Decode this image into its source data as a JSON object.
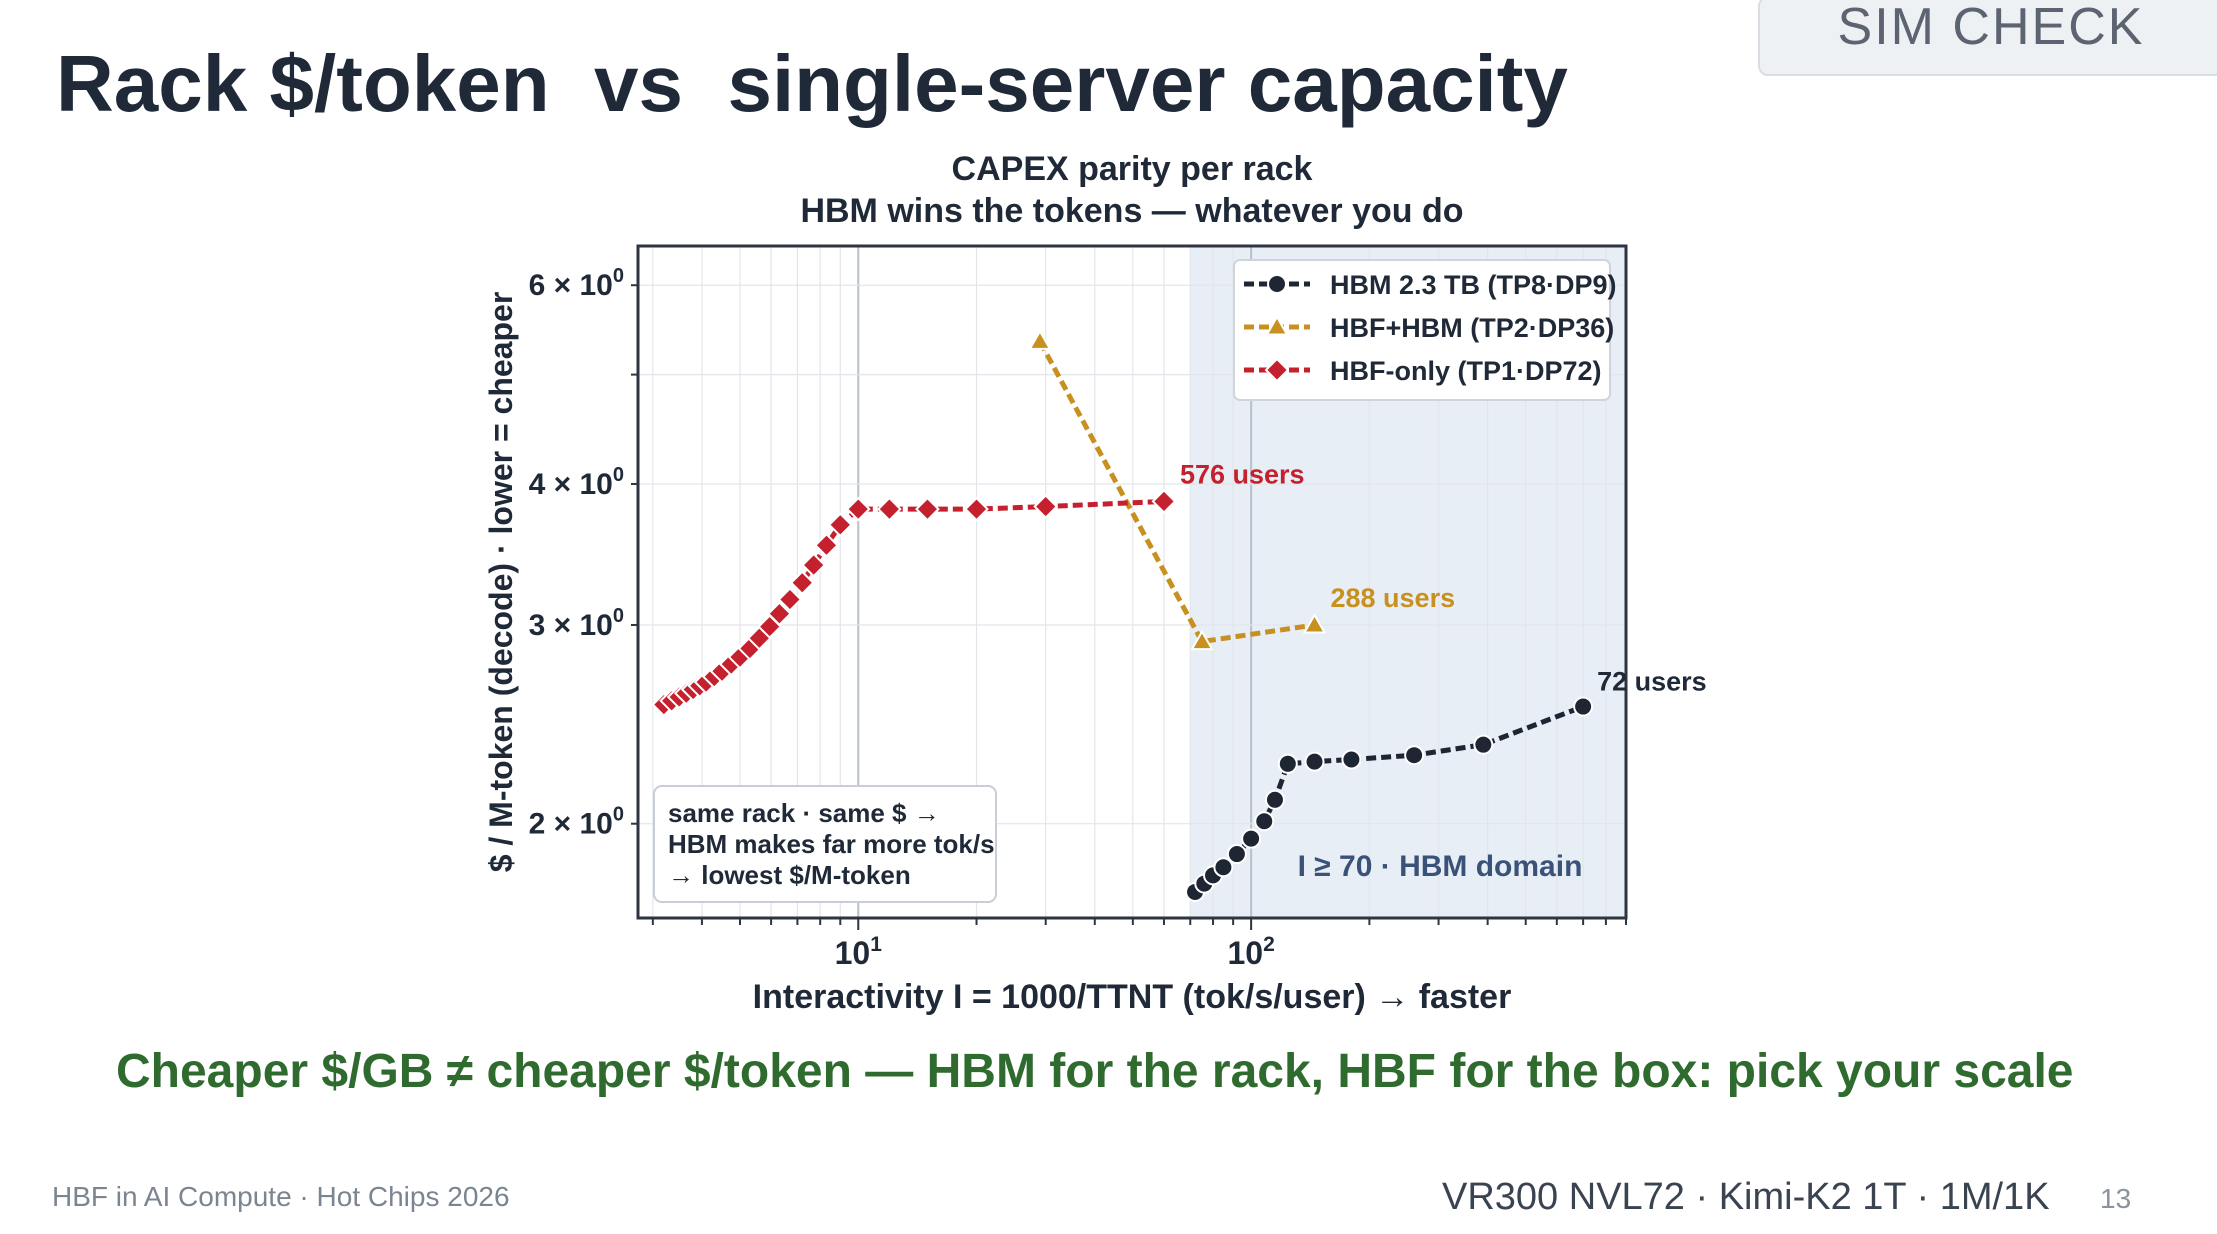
{
  "slide": {
    "title": "Rack $/token  vs  single-server capacity",
    "badge": "SIM CHECK",
    "takeaway": "Cheaper $/GB ≠ cheaper $/token — HBM for the rack, HBF for the box: pick your scale",
    "footer_left": "HBF in AI Compute · Hot Chips 2026",
    "footer_right": "VR300 NVL72 · Kimi-K2 1T · 1M/1K",
    "page_number": "13"
  },
  "chart_data": {
    "type": "line",
    "title_line1": "CAPEX parity per rack",
    "title_line2": "HBM wins the tokens — whatever you do",
    "xlabel": "Interactivity  I = 1000/TTNT  (tok/s/user)  → faster",
    "ylabel": "$ / M-token (decode)   ·   lower = cheaper",
    "x_scale": "log",
    "y_scale": "log",
    "xlim": [
      2.75,
      900
    ],
    "ylim": [
      1.65,
      6.5
    ],
    "x_ticks": [
      {
        "value": 10,
        "base": "10",
        "exp": "1"
      },
      {
        "value": 100,
        "base": "10",
        "exp": "2"
      }
    ],
    "y_ticks": [
      {
        "value": 2,
        "mant": "2 × 10",
        "exp": "0"
      },
      {
        "value": 3,
        "mant": "3 × 10",
        "exp": "0"
      },
      {
        "value": 4,
        "mant": "4 × 10",
        "exp": "0"
      },
      {
        "value": 6,
        "mant": "6 × 10",
        "exp": "0"
      }
    ],
    "grid": true,
    "legend_position": "top-right",
    "shaded_region": {
      "x_from": 70,
      "label": "I ≥ 70  ·  HBM domain",
      "color": "#e8eef6"
    },
    "series": [
      {
        "name": "HBM 2.3 TB (TP8·DP9)",
        "color": "#1e2533",
        "marker": "circle",
        "dash": "10,5",
        "end_label": "72 users",
        "points": [
          [
            72,
            1.74
          ],
          [
            76,
            1.77
          ],
          [
            80,
            1.8
          ],
          [
            85,
            1.83
          ],
          [
            92,
            1.88
          ],
          [
            100,
            1.94
          ],
          [
            108,
            2.01
          ],
          [
            115,
            2.1
          ],
          [
            124,
            2.26
          ],
          [
            145,
            2.27
          ],
          [
            180,
            2.28
          ],
          [
            260,
            2.3
          ],
          [
            390,
            2.35
          ],
          [
            700,
            2.54
          ]
        ]
      },
      {
        "name": "HBF+HBM (TP2·DP36)",
        "color": "#c8901f",
        "marker": "triangle",
        "dash": "10,5",
        "end_label": "288 users",
        "points": [
          [
            29,
            5.35
          ],
          [
            75,
            2.9
          ],
          [
            145,
            3.0
          ]
        ]
      },
      {
        "name": "HBF-only (TP1·DP72)",
        "color": "#c4202e",
        "marker": "diamond",
        "dash": "10,5",
        "end_label": "576 users",
        "points": [
          [
            3.2,
            2.55
          ],
          [
            3.35,
            2.57
          ],
          [
            3.5,
            2.59
          ],
          [
            3.65,
            2.61
          ],
          [
            3.8,
            2.63
          ],
          [
            3.95,
            2.65
          ],
          [
            4.1,
            2.67
          ],
          [
            4.3,
            2.7
          ],
          [
            4.5,
            2.73
          ],
          [
            4.75,
            2.77
          ],
          [
            5.0,
            2.81
          ],
          [
            5.3,
            2.86
          ],
          [
            5.6,
            2.92
          ],
          [
            5.95,
            2.99
          ],
          [
            6.3,
            3.07
          ],
          [
            6.7,
            3.16
          ],
          [
            7.2,
            3.27
          ],
          [
            7.7,
            3.39
          ],
          [
            8.3,
            3.53
          ],
          [
            9.0,
            3.68
          ],
          [
            10,
            3.8
          ],
          [
            12,
            3.8
          ],
          [
            15,
            3.8
          ],
          [
            20,
            3.8
          ],
          [
            30,
            3.82
          ],
          [
            60,
            3.86
          ]
        ]
      }
    ],
    "note": [
      "same rack · same $ →",
      "HBM makes far more tok/s",
      "→ lowest $/M-token"
    ]
  }
}
